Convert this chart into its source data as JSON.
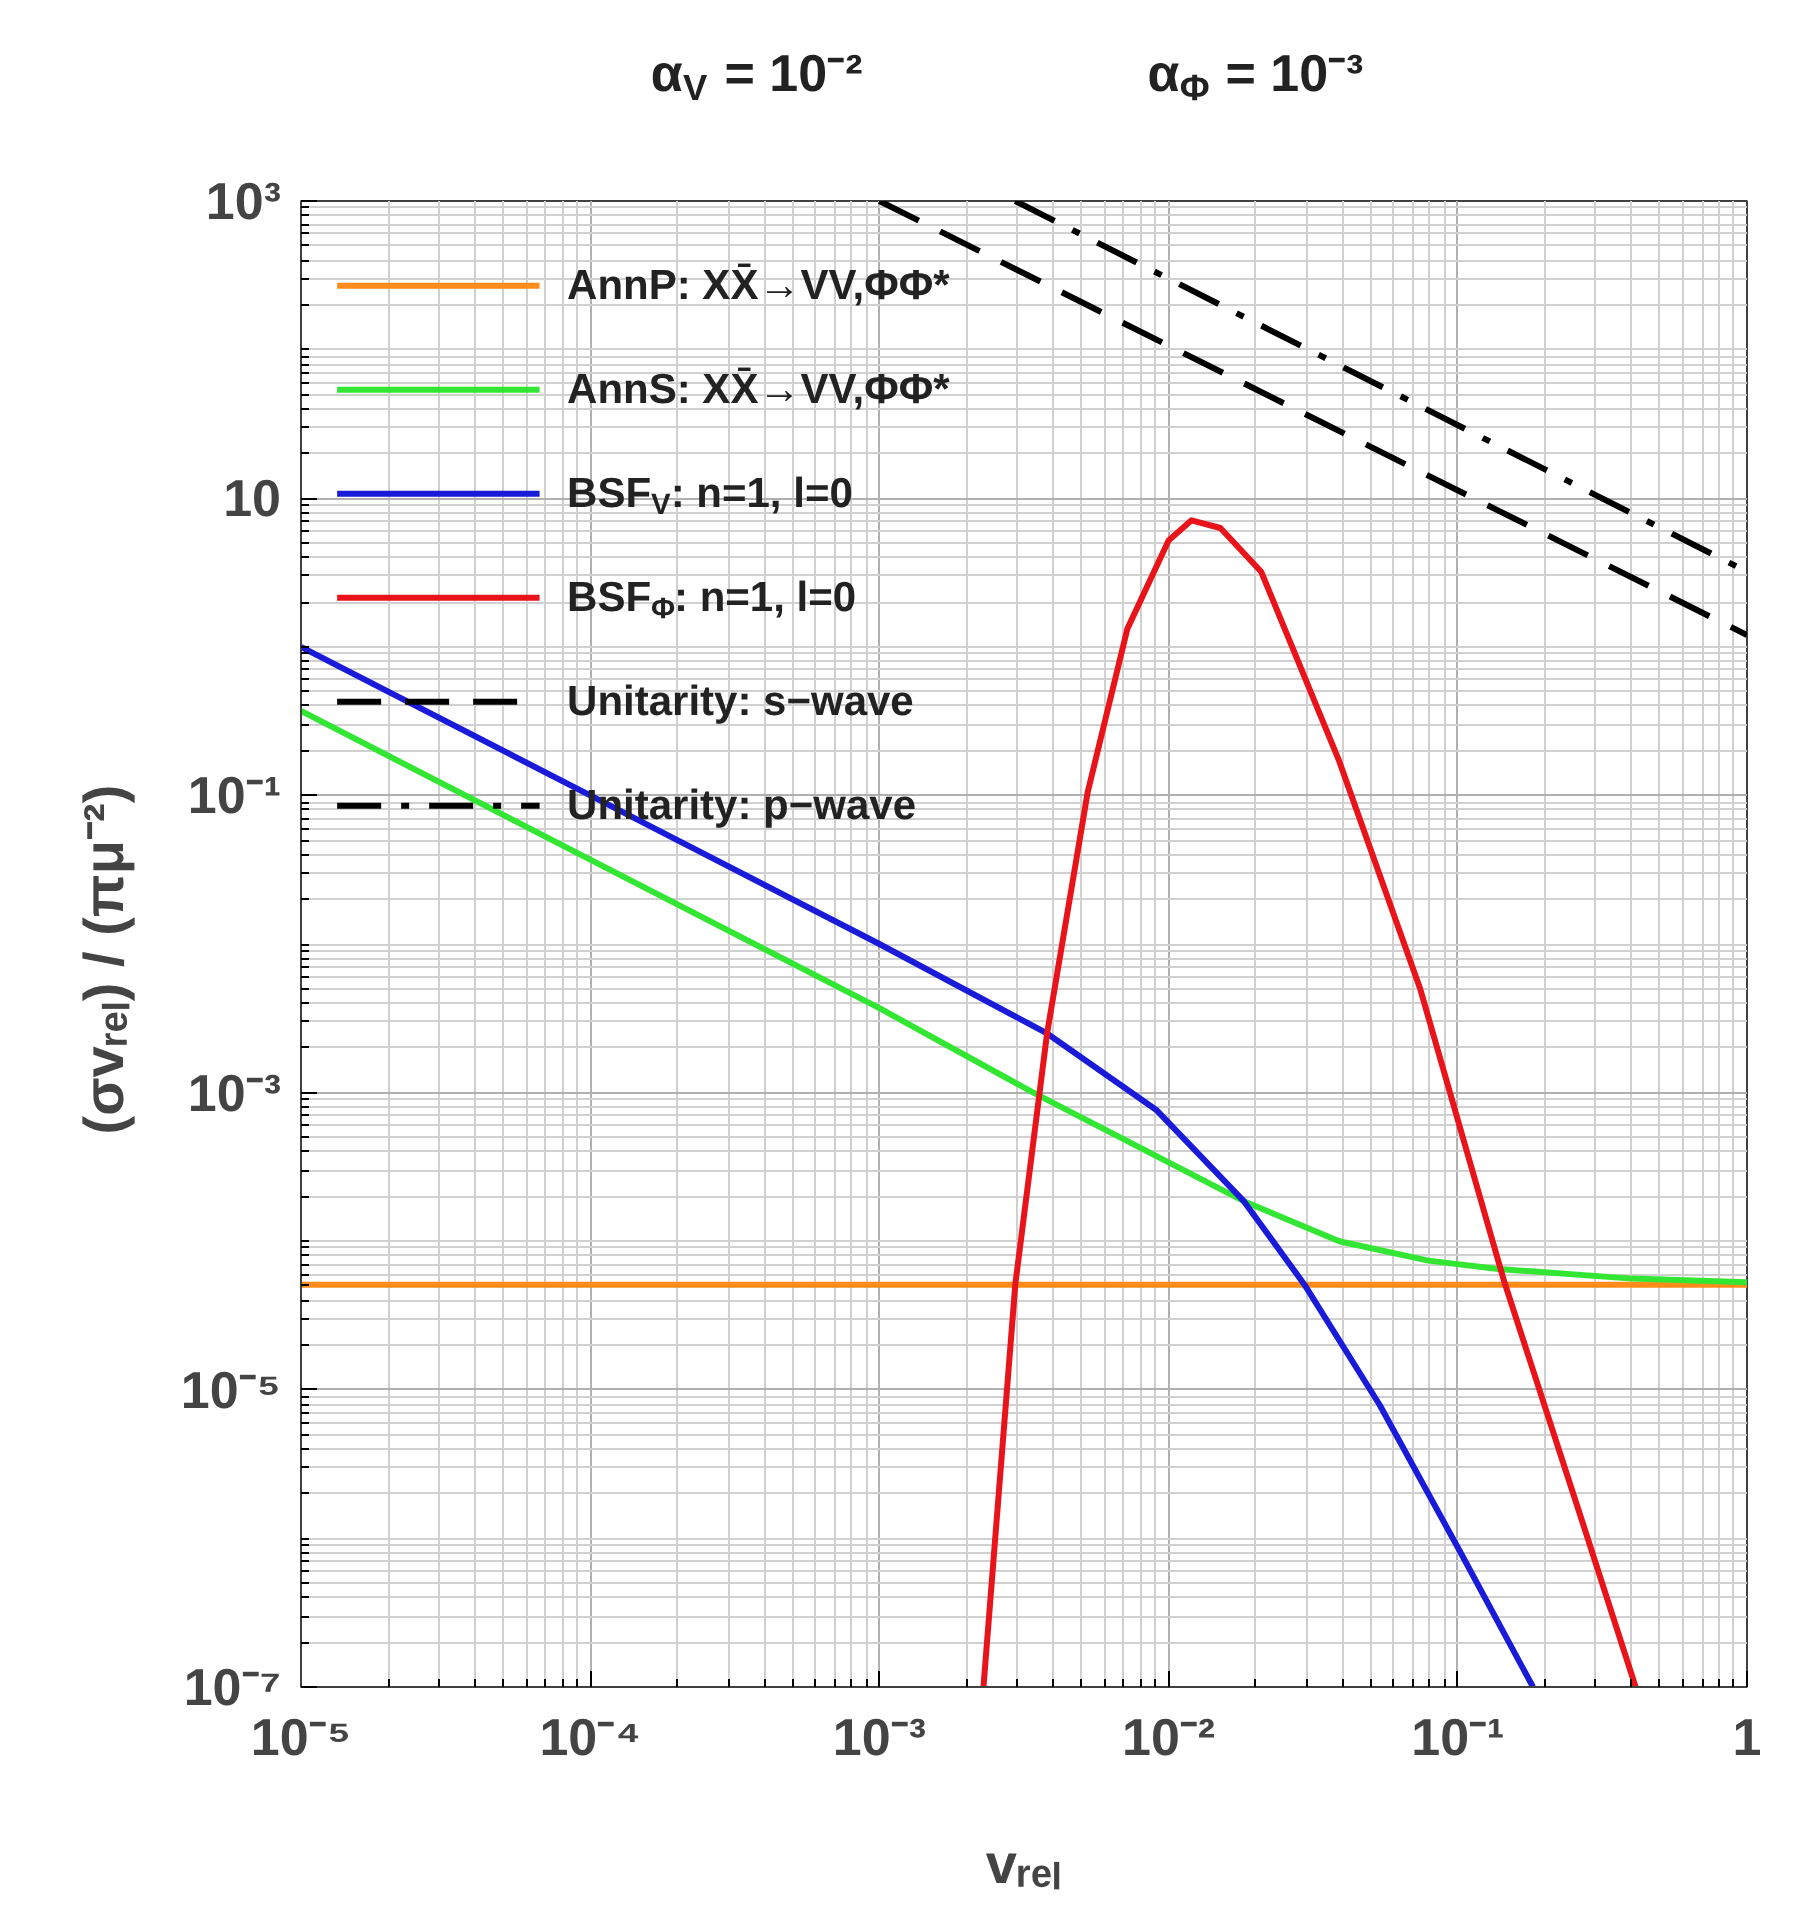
{
  "chart_data": {
    "type": "line",
    "title": "α$_{V}$ = 10⁻²",
    "subtitle": "α$_{Φ}$ = 10⁻³",
    "xlabel": "vᵣₑₗ",
    "ylabel": "(σvᵣₑₗ)  /  (πμ⁻²)",
    "log": "xy",
    "grid": true,
    "legend": "top left",
    "xlim": [
      1e-05,
      1
    ],
    "ylim": [
      1e-07,
      1000
    ],
    "xticks": [
      {
        "value": 1e-05,
        "label": "10⁻⁵"
      },
      {
        "value": 0.0001,
        "label": "10⁻⁴"
      },
      {
        "value": 0.001,
        "label": "10⁻³"
      },
      {
        "value": 0.01,
        "label": "10⁻²"
      },
      {
        "value": 0.1,
        "label": "10⁻¹"
      },
      1
    ],
    "yticks": [
      {
        "value": 1e-07,
        "label": "10⁻⁷"
      },
      {
        "value": 1e-05,
        "label": "10⁻⁵"
      },
      {
        "value": 0.001,
        "label": "10⁻³"
      },
      {
        "value": 0.1,
        "label": "10⁻¹"
      },
      10,
      {
        "value": 1000,
        "label": "10³"
      }
    ],
    "series": [
      {
        "name": "AnnP: XX̄→VV,ΦΦ*",
        "color": "#ff8c1a",
        "x": [
          1e-05,
          1
        ],
        "values": [
          5.1e-05,
          5.1e-05
        ]
      },
      {
        "name": "AnnS: XX̄→VV,ΦΦ*",
        "color": "#33e633",
        "x": [
          1e-05,
          0.0001,
          0.001,
          0.00347,
          0.0182,
          0.0389,
          0.079,
          0.138,
          0.4,
          1
        ],
        "values": [
          0.37,
          0.037,
          0.0037,
          0.00098,
          0.000186,
          0.0001,
          7.4e-05,
          6.5e-05,
          5.6e-05,
          5.3e-05
        ]
      },
      {
        "name": "BSF$_{V}$: n=1, l=0",
        "color": "#1a1ad9",
        "x": [
          1e-05,
          0.0001,
          0.001,
          0.0038,
          0.0091,
          0.0182,
          0.0295,
          0.0537,
          0.102,
          0.182
        ],
        "values": [
          1.0,
          0.1,
          0.01,
          0.0025,
          0.00076,
          0.000186,
          5.1e-05,
          7.9e-06,
          8.1e-07,
          1e-07
        ]
      },
      {
        "name": "BSF$_{Φ}$: n=1, l=0",
        "color": "#e8141a",
        "x": [
          0.00229,
          0.00295,
          0.0038,
          0.00525,
          0.0072,
          0.01,
          0.012,
          0.0151,
          0.0209,
          0.0389,
          0.0741,
          0.1445,
          0.263,
          0.412
        ],
        "values": [
          1e-07,
          5.1e-05,
          0.0025,
          0.105,
          1.32,
          5.2,
          7.1,
          6.3,
          3.2,
          0.17,
          0.005,
          5.4e-05,
          1.5e-06,
          1e-07
        ]
      },
      {
        "name": "Unitarity: s−wave",
        "color": "#000000",
        "line_style": "dashed",
        "x": [
          0.001,
          1
        ],
        "values": [
          1000,
          1.2
        ]
      },
      {
        "name": "Unitarity: p−wave",
        "color": "#000000",
        "line_style": "dashdot",
        "x": [
          0.00295,
          1
        ],
        "values": [
          1000,
          3.2
        ]
      }
    ]
  }
}
